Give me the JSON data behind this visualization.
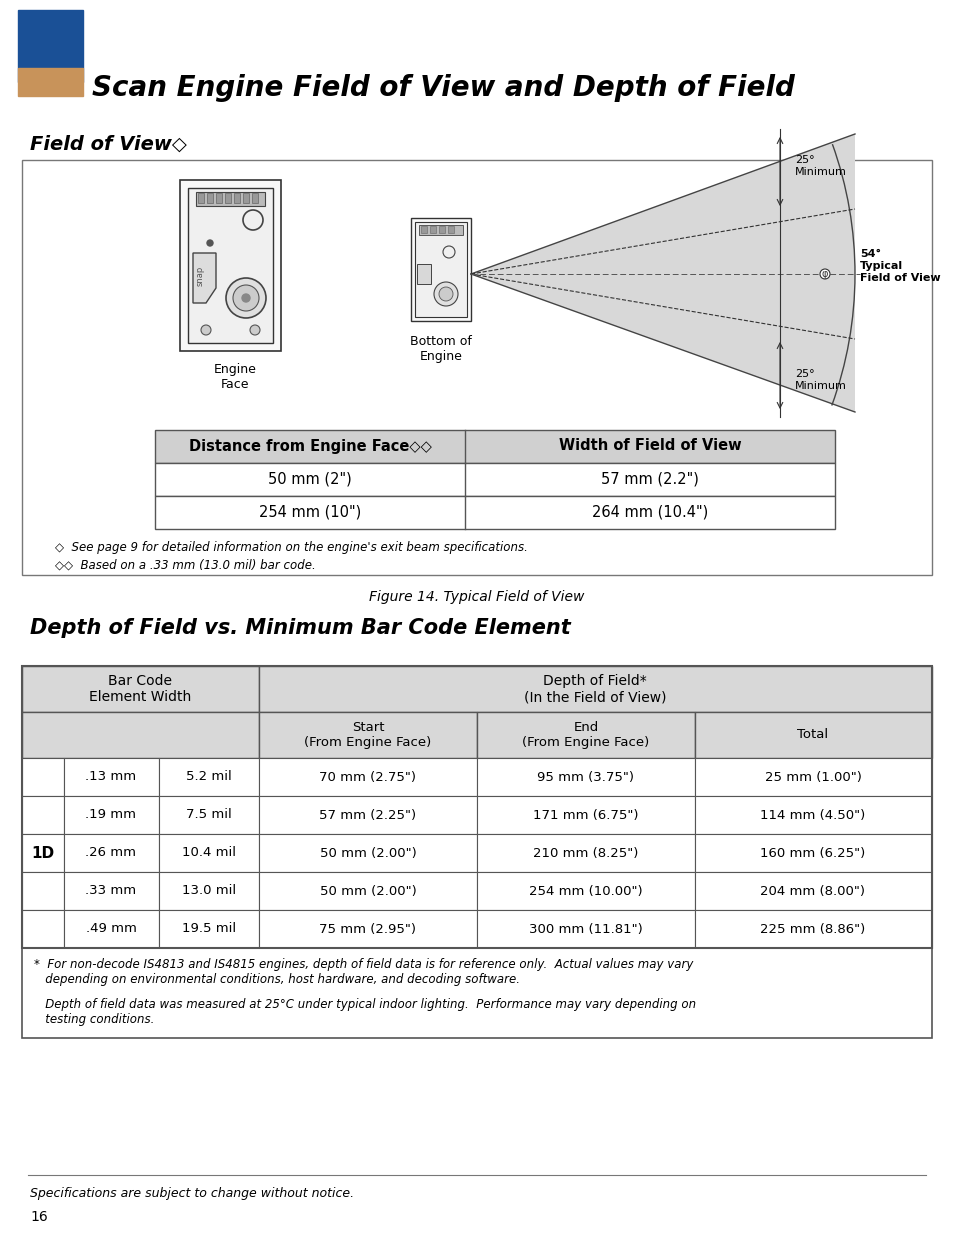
{
  "page_bg": "#ffffff",
  "title": "Scan Engine Field of View and Depth of Field",
  "title_color": "#000000",
  "blue_rect_color": "#1a5096",
  "tan_rect_color": "#c8935a",
  "section1_title": "Field of View◇",
  "fov_table_header": [
    "Distance from Engine Face◇◇",
    "Width of Field of View"
  ],
  "fov_table_rows": [
    [
      "50 mm (2\")",
      "57 mm (2.2\")"
    ],
    [
      "254 mm (10\")",
      "264 mm (10.4\")"
    ]
  ],
  "fov_note1": "◇  See page 9 for detailed information on the engine's exit beam specifications.",
  "fov_note2": "◇◇  Based on a .33 mm (13.0 mil) bar code.",
  "figure_caption": "Figure 14. Typical Field of View",
  "section2_title": "Depth of Field vs. Minimum Bar Code Element",
  "dof_subcol_headers": [
    "Start\n(From Engine Face)",
    "End\n(From Engine Face)",
    "Total"
  ],
  "dof_rows": [
    [
      ".13 mm",
      "5.2 mil",
      "70 mm (2.75\")",
      "95 mm (3.75\")",
      "25 mm (1.00\")"
    ],
    [
      ".19 mm",
      "7.5 mil",
      "57 mm (2.25\")",
      "171 mm (6.75\")",
      "114 mm (4.50\")"
    ],
    [
      ".26 mm",
      "10.4 mil",
      "50 mm (2.00\")",
      "210 mm (8.25\")",
      "160 mm (6.25\")"
    ],
    [
      ".33 mm",
      "13.0 mil",
      "50 mm (2.00\")",
      "254 mm (10.00\")",
      "204 mm (8.00\")"
    ],
    [
      ".49 mm",
      "19.5 mil",
      "75 mm (2.95\")",
      "300 mm (11.81\")",
      "225 mm (8.86\")"
    ]
  ],
  "dof_row_label": "1D",
  "dof_note1": "*  For non-decode IS4813 and IS4815 engines, depth of field data is for reference only.  Actual values may vary\n   depending on environmental conditions, host hardware, and decoding software.",
  "dof_note2": "   Depth of field data was measured at 25°C under typical indoor lighting.  Performance may vary depending on\n   testing conditions.",
  "footer_text": "Specifications are subject to change without notice.",
  "page_number": "16",
  "table_header_bg": "#d0d0d0",
  "table_border_color": "#555555"
}
